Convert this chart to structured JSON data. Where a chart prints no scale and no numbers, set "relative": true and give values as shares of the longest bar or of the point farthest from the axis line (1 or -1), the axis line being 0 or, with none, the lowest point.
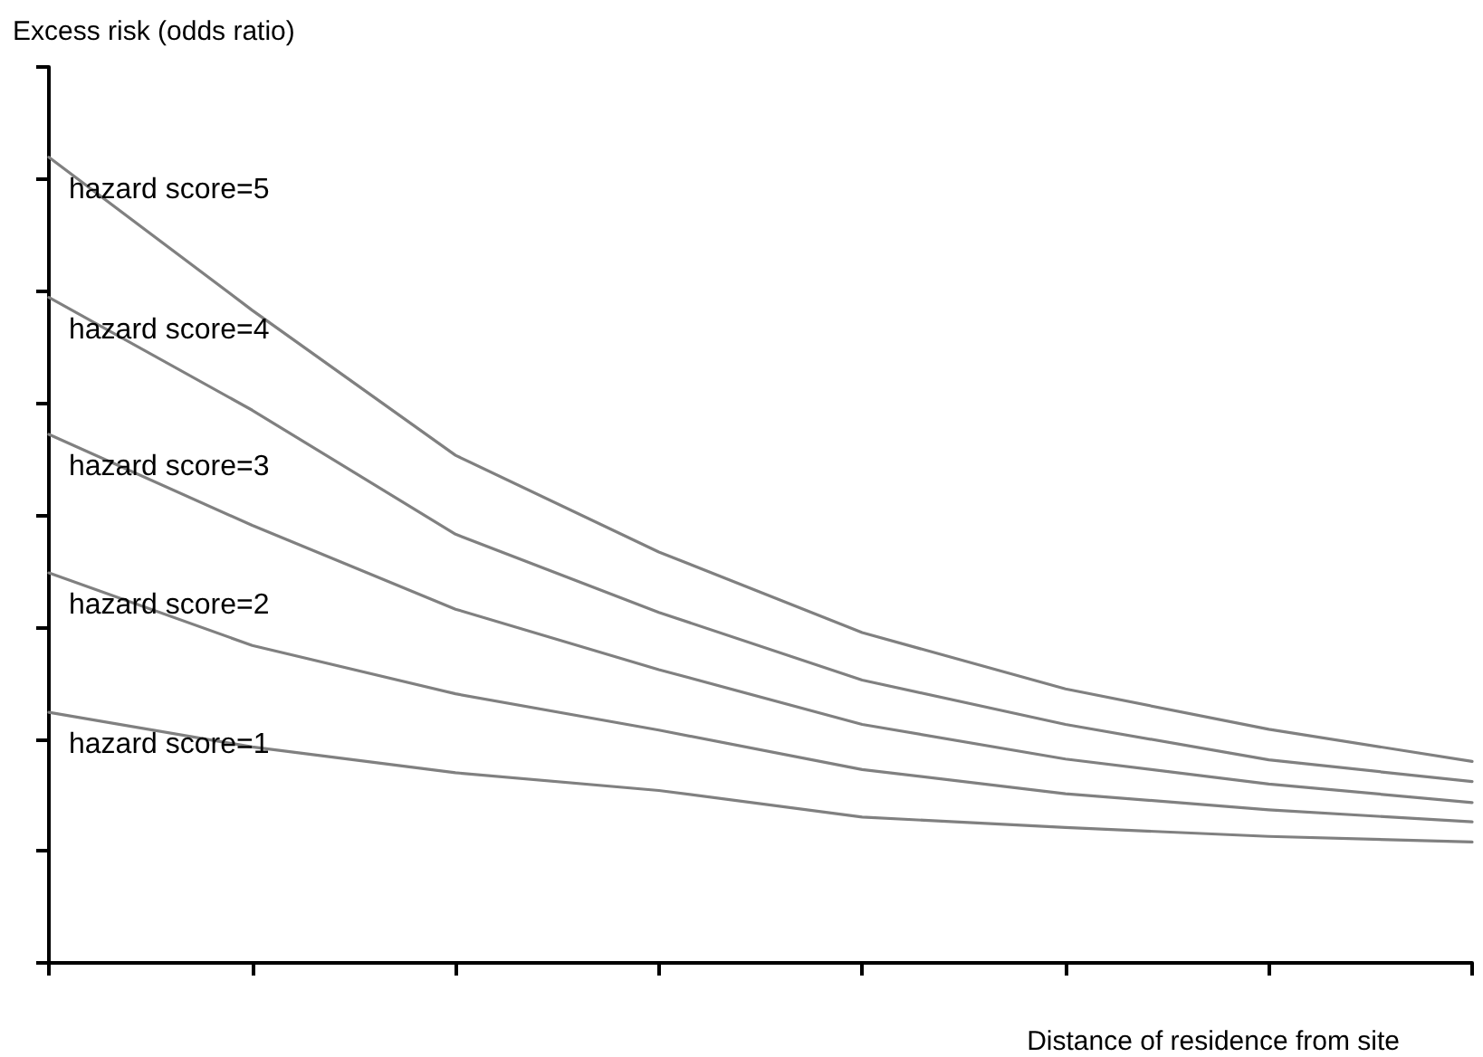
{
  "chart_data": {
    "type": "line",
    "ylabel": "Excess risk (odds ratio)",
    "xlabel": "Distance of residence from site",
    "relative": true,
    "marker": "none",
    "categories": [
      null,
      null,
      null,
      null,
      null,
      null,
      null,
      null
    ],
    "series": [
      {
        "name": "hazard score=5",
        "color": "#808080",
        "values": [
          1,
          0.81,
          0.63,
          0.51,
          0.41,
          0.34,
          0.29,
          0.25
        ]
      },
      {
        "name": "hazard score=4",
        "color": "#808080",
        "values": [
          0.826,
          0.686,
          0.532,
          0.435,
          0.351,
          0.296,
          0.252,
          0.225
        ]
      },
      {
        "name": "hazard score=3",
        "color": "#808080",
        "values": [
          0.656,
          0.543,
          0.439,
          0.364,
          0.296,
          0.253,
          0.222,
          0.199
        ]
      },
      {
        "name": "hazard score=2",
        "color": "#808080",
        "values": [
          0.484,
          0.394,
          0.334,
          0.289,
          0.24,
          0.21,
          0.19,
          0.175
        ]
      },
      {
        "name": "hazard score=1",
        "color": "#808080",
        "values": [
          0.311,
          0.268,
          0.236,
          0.214,
          0.181,
          0.168,
          0.157,
          0.15
        ]
      }
    ]
  }
}
